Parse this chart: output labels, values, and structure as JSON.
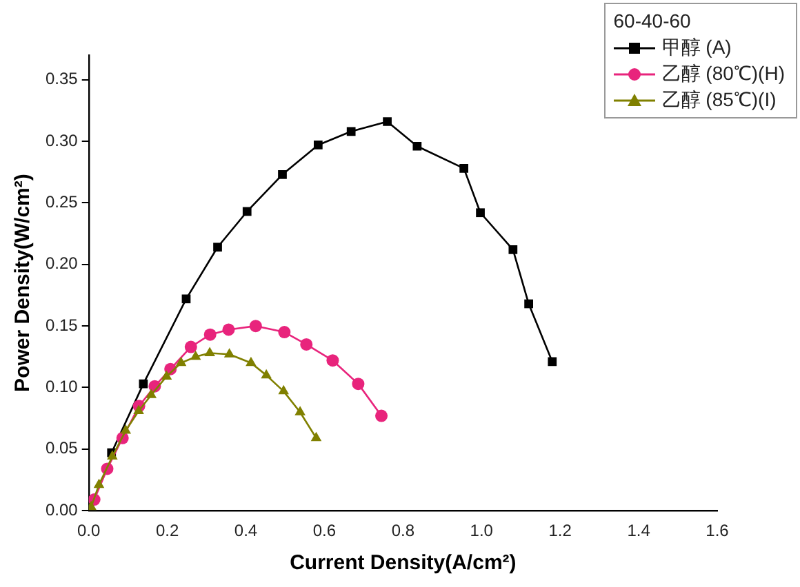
{
  "chart_data": {
    "type": "line",
    "xlabel": "Current Density(A/cm²)",
    "ylabel": "Power Density(W/cm²)",
    "legend_title": "60-40-60",
    "legend": "top right",
    "grid": false,
    "xlim": [
      0,
      1.6
    ],
    "xticks": [
      {
        "value": 0,
        "label": "0.0"
      },
      0.2,
      0.4,
      0.6,
      0.8,
      {
        "value": 1,
        "label": "1.0"
      },
      1.2,
      1.4,
      1.6
    ],
    "ylim": [
      0,
      0.37
    ],
    "yticks": [
      {
        "value": 0,
        "label": "0.00"
      },
      0.05,
      {
        "value": 0.1,
        "label": "0.10"
      },
      0.15,
      {
        "value": 0.2,
        "label": "0.20"
      },
      0.25,
      {
        "value": 0.3,
        "label": "0.30"
      },
      0.35
    ],
    "series": [
      {
        "name": "甲醇 (A)",
        "color": "#000000",
        "marker": "square",
        "x": [
          0.058,
          0.139,
          0.248,
          0.328,
          0.403,
          0.493,
          0.584,
          0.668,
          0.76,
          0.836,
          0.955,
          0.997,
          1.08,
          1.12,
          1.18
        ],
        "values": [
          0.047,
          0.103,
          0.172,
          0.214,
          0.243,
          0.273,
          0.297,
          0.308,
          0.316,
          0.296,
          0.278,
          0.242,
          0.212,
          0.168,
          0.121
        ]
      },
      {
        "name": "乙醇 (80℃)(H)",
        "color": "#e8247c",
        "marker": "circle",
        "x": [
          0.014,
          0.047,
          0.086,
          0.128,
          0.168,
          0.208,
          0.26,
          0.309,
          0.356,
          0.425,
          0.498,
          0.554,
          0.621,
          0.686,
          0.745
        ],
        "values": [
          0.009,
          0.034,
          0.059,
          0.085,
          0.101,
          0.115,
          0.133,
          0.143,
          0.147,
          0.15,
          0.145,
          0.135,
          0.122,
          0.103,
          0.077
        ]
      },
      {
        "name": "乙醇 (85℃)(I)",
        "color": "#808000",
        "marker": "triangle",
        "x": [
          0.006,
          0.026,
          0.06,
          0.094,
          0.127,
          0.159,
          0.198,
          0.235,
          0.272,
          0.308,
          0.358,
          0.413,
          0.452,
          0.496,
          0.538,
          0.579
        ],
        "values": [
          0.003,
          0.021,
          0.044,
          0.065,
          0.081,
          0.094,
          0.109,
          0.12,
          0.125,
          0.128,
          0.127,
          0.12,
          0.11,
          0.097,
          0.08,
          0.059
        ]
      }
    ]
  }
}
